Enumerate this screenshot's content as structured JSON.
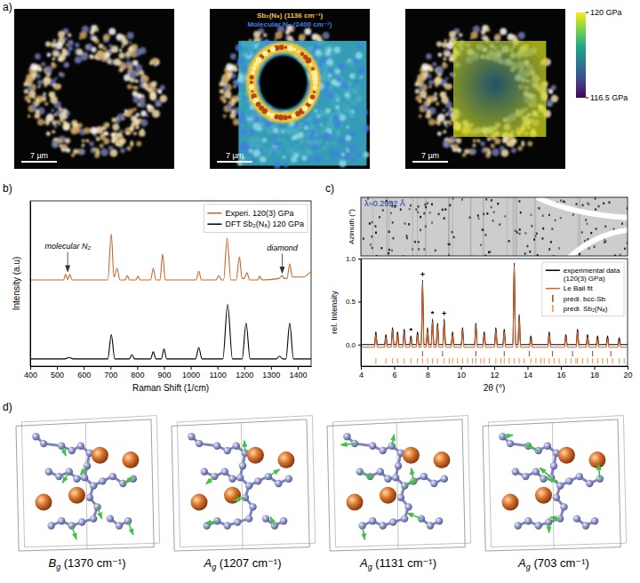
{
  "panel_a": {
    "panel_label": "a)",
    "scale_bar": "7 µm",
    "legend": [
      {
        "text": "Sb₂(N₈) (1136 cm⁻¹)",
        "color": "#f0c43a"
      },
      {
        "text": "Molecular N₂ (2400 cm⁻¹)",
        "color": "#3f7fe0"
      }
    ],
    "colorbar": {
      "range": [
        116.5,
        120
      ],
      "ticks": [
        {
          "value": 120,
          "label": "120 GPa"
        },
        {
          "value": 116.5,
          "label": "116.5 GPa"
        }
      ]
    },
    "pressure_map": {
      "center": 117.8,
      "edge": 119.8
    }
  },
  "chart_data": [
    {
      "type": "line",
      "panel_label": "b)",
      "x_label": "Raman Shift (1/cm)",
      "y_label": "Intensity (a.u)",
      "xlim": [
        400,
        1450
      ],
      "xticks": [
        400,
        500,
        600,
        700,
        800,
        900,
        1000,
        1100,
        1200,
        1300,
        1400
      ],
      "ylim": [
        0,
        11.5
      ],
      "tick_labels": "x",
      "legend": "upper right",
      "series": [
        {
          "name": "Experi. 120(3) GPa",
          "color": "#c8642a",
          "x": [
            400,
            525,
            532,
            540,
            548,
            556,
            690,
            703,
            713,
            725,
            735,
            755,
            763,
            771,
            795,
            803,
            811,
            850,
            860,
            870,
            885,
            895,
            905,
            1020,
            1030,
            1040,
            1095,
            1105,
            1115,
            1123,
            1136,
            1150,
            1170,
            1182,
            1192,
            1200,
            1210,
            1220,
            1250,
            1258,
            1266,
            1330,
            1342,
            1350,
            1360,
            1370,
            1380,
            1420,
            1450
          ],
          "values": [
            6.0,
            6.0,
            6.4,
            6.0,
            6.4,
            6.0,
            6.0,
            9.2,
            6.2,
            6.8,
            6.0,
            6.0,
            6.3,
            6.0,
            6.0,
            6.25,
            6.0,
            6.0,
            6.8,
            6.0,
            6.0,
            7.8,
            6.0,
            6.0,
            6.6,
            6.0,
            6.0,
            6.3,
            6.0,
            6.0,
            8.9,
            6.0,
            6.0,
            7.6,
            6.1,
            6.1,
            6.5,
            6.0,
            6.0,
            6.25,
            6.0,
            6.1,
            6.3,
            6.1,
            6.1,
            7.1,
            6.2,
            6.2,
            6.6
          ]
        },
        {
          "name": "DFT Sb₂(N₈) 120 GPa",
          "color": "#000000",
          "x": [
            400,
            530,
            545,
            560,
            690,
            703,
            716,
            770,
            780,
            790,
            850,
            860,
            870,
            890,
            900,
            910,
            1018,
            1030,
            1042,
            1120,
            1138,
            1156,
            1192,
            1207,
            1222,
            1320,
            1332,
            1344,
            1356,
            1370,
            1384,
            1450
          ],
          "values": [
            0.5,
            0.5,
            0.6,
            0.5,
            0.5,
            2.2,
            0.5,
            0.5,
            0.8,
            0.5,
            0.5,
            1.0,
            0.5,
            0.5,
            1.2,
            0.5,
            0.5,
            1.3,
            0.5,
            0.5,
            4.3,
            0.5,
            0.5,
            3.0,
            0.5,
            0.5,
            0.7,
            0.5,
            0.5,
            3.0,
            0.5,
            0.5
          ]
        }
      ],
      "annotations": [
        {
          "text": "molecular N₂",
          "x": 540,
          "y": 6.4
        },
        {
          "text": "diamond",
          "x": 1342,
          "y": 6.3
        }
      ]
    },
    {
      "type": "line",
      "panel_label": "c)",
      "image_annotation": "λ=0.2952 Å",
      "image_y_label": "Azimuth (°)",
      "x_label": "2θ (°)",
      "y_label": "rel. Intensity",
      "xlim": [
        4,
        20
      ],
      "xticks": [
        4,
        6,
        8,
        10,
        12,
        14,
        16,
        18,
        20
      ],
      "ylim": [
        -0.25,
        1.0
      ],
      "yticks": [
        {
          "value": 0,
          "label": "0.0"
        },
        {
          "value": 0.5,
          "label": "0.5"
        },
        {
          "value": 1,
          "label": "1.0"
        }
      ],
      "legend": "upper right",
      "series": [
        {
          "name": "experimental data (120(3) GPa)",
          "color": "#000000",
          "x": [
            4.0,
            4.82,
            4.9,
            4.98,
            5.42,
            5.5,
            5.58,
            5.82,
            5.9,
            5.98,
            6.12,
            6.2,
            6.28,
            6.52,
            6.6,
            6.68,
            6.92,
            7.0,
            7.08,
            7.32,
            7.4,
            7.48,
            7.62,
            7.7,
            7.78,
            7.92,
            8.0,
            8.08,
            8.22,
            8.3,
            8.38,
            8.52,
            8.6,
            8.68,
            8.92,
            9.0,
            9.08,
            9.42,
            9.5,
            9.58,
            10.02,
            10.1,
            10.18,
            10.82,
            10.9,
            10.98,
            11.32,
            11.4,
            11.48,
            12.02,
            12.1,
            12.18,
            12.52,
            12.6,
            12.68,
            13.12,
            13.2,
            13.28,
            13.42,
            13.5,
            13.58,
            14.12,
            14.2,
            14.28,
            15.22,
            15.3,
            15.38,
            16.22,
            16.3,
            16.38,
            16.92,
            17.0,
            17.08,
            17.52,
            17.6,
            17.68,
            18.12,
            18.2,
            18.28,
            18.72,
            18.8,
            18.88,
            19.42,
            19.5,
            19.58,
            20.0
          ],
          "values": [
            0.0,
            0.0,
            0.15,
            0.0,
            0.0,
            0.12,
            0.0,
            0.0,
            0.2,
            0.0,
            0.0,
            0.15,
            0.0,
            0.0,
            0.18,
            0.0,
            0.0,
            0.1,
            0.0,
            0.0,
            0.15,
            0.0,
            0.0,
            0.75,
            0.0,
            0.0,
            0.2,
            0.0,
            0.0,
            0.3,
            0.0,
            0.0,
            0.25,
            0.0,
            0.0,
            0.3,
            0.0,
            0.0,
            0.15,
            0.0,
            0.0,
            0.2,
            0.0,
            0.0,
            0.25,
            0.0,
            0.0,
            0.15,
            0.0,
            0.0,
            0.2,
            0.0,
            0.0,
            0.18,
            0.0,
            0.0,
            0.95,
            0.0,
            0.0,
            0.35,
            0.0,
            0.0,
            0.1,
            0.0,
            0.0,
            0.15,
            0.0,
            0.0,
            0.12,
            0.0,
            0.0,
            0.18,
            0.0,
            0.0,
            0.12,
            0.0,
            0.0,
            0.1,
            0.0,
            0.0,
            0.1,
            0.0,
            0.0,
            0.08,
            0.0,
            0.0
          ]
        },
        {
          "name": "Le Bail fit",
          "color": "#d9622b",
          "x": [
            4.0,
            4.82,
            4.9,
            4.98,
            5.42,
            5.5,
            5.58,
            5.82,
            5.9,
            5.98,
            6.12,
            6.2,
            6.28,
            6.52,
            6.6,
            6.68,
            6.92,
            7.0,
            7.08,
            7.32,
            7.4,
            7.48,
            7.62,
            7.7,
            7.78,
            7.92,
            8.0,
            8.08,
            8.22,
            8.3,
            8.38,
            8.52,
            8.6,
            8.68,
            8.92,
            9.0,
            9.08,
            9.42,
            9.5,
            9.58,
            10.02,
            10.1,
            10.18,
            10.82,
            10.9,
            10.98,
            11.32,
            11.4,
            11.48,
            12.02,
            12.1,
            12.18,
            12.52,
            12.6,
            12.68,
            13.12,
            13.2,
            13.28,
            13.42,
            13.5,
            13.58,
            14.12,
            14.2,
            14.28,
            15.22,
            15.3,
            15.38,
            16.22,
            16.3,
            16.38,
            16.92,
            17.0,
            17.08,
            17.52,
            17.6,
            17.68,
            18.12,
            18.2,
            18.28,
            18.72,
            18.8,
            18.88,
            19.42,
            19.5,
            19.58,
            20.0
          ],
          "values": [
            -0.03,
            -0.03,
            0.12,
            -0.03,
            -0.03,
            0.09,
            -0.03,
            -0.03,
            0.17,
            -0.03,
            -0.03,
            0.12,
            -0.03,
            -0.03,
            0.15,
            -0.03,
            -0.03,
            0.07,
            -0.03,
            -0.03,
            0.12,
            -0.03,
            -0.03,
            0.72,
            -0.03,
            -0.03,
            0.17,
            -0.03,
            -0.03,
            0.27,
            -0.03,
            -0.03,
            0.22,
            -0.03,
            -0.03,
            0.27,
            -0.03,
            -0.03,
            0.12,
            -0.03,
            -0.03,
            0.17,
            -0.03,
            -0.03,
            0.22,
            -0.03,
            -0.03,
            0.12,
            -0.03,
            -0.03,
            0.17,
            -0.03,
            -0.03,
            0.15,
            -0.03,
            -0.03,
            0.92,
            -0.03,
            -0.03,
            0.32,
            -0.03,
            -0.03,
            0.07,
            -0.03,
            -0.03,
            0.12,
            -0.03,
            -0.03,
            0.09,
            -0.03,
            -0.03,
            0.15,
            -0.03,
            -0.03,
            0.09,
            -0.03,
            -0.03,
            0.07,
            -0.03,
            -0.03,
            0.07,
            -0.03,
            -0.03,
            0.05,
            -0.03,
            -0.03
          ]
        },
        {
          "name": "predi. bcc-Sb",
          "color": "#b5391a",
          "type": "rug",
          "x": [
            7.7,
            8.9,
            10.9,
            12.6,
            14.1,
            15.5,
            16.7,
            17.9,
            19.0
          ]
        },
        {
          "name": "predi. Sb₂(N₈)",
          "color": "#f0913a",
          "type": "rug",
          "x": [
            4.9,
            5.5,
            5.9,
            6.2,
            6.6,
            7.0,
            7.4,
            7.7,
            8.0,
            8.3,
            8.6,
            9.0,
            9.3,
            9.5,
            9.8,
            10.1,
            10.4,
            10.7,
            10.9,
            11.2,
            11.4,
            11.7,
            12.1,
            12.4,
            12.6,
            12.9,
            13.2,
            13.5,
            13.8,
            14.2,
            14.5,
            14.8,
            15.0,
            15.3,
            15.6,
            15.9,
            16.3,
            16.6,
            16.9,
            17.0,
            17.3,
            17.6,
            17.9,
            18.2,
            18.5,
            18.8,
            19.1,
            19.5,
            19.8
          ]
        }
      ],
      "annotations": [
        {
          "text": "+",
          "x": 7.7,
          "y": 0.75
        },
        {
          "text": "*",
          "x": 7.0,
          "y": 0.1
        },
        {
          "text": "*",
          "x": 8.3,
          "y": 0.3
        },
        {
          "text": "+",
          "x": 9.0,
          "y": 0.3
        }
      ]
    }
  ],
  "panel_d": {
    "panel_label": "d)",
    "modes": [
      {
        "symbol": "B",
        "subscript": "g",
        "suffix": " (1370 cm⁻¹)"
      },
      {
        "symbol": "A",
        "subscript": "g",
        "suffix": " (1207 cm⁻¹)"
      },
      {
        "symbol": "A",
        "subscript": "g",
        "suffix": " (1131 cm⁻¹)"
      },
      {
        "symbol": "A",
        "subscript": "g",
        "suffix": " (703 cm⁻¹)"
      }
    ]
  }
}
